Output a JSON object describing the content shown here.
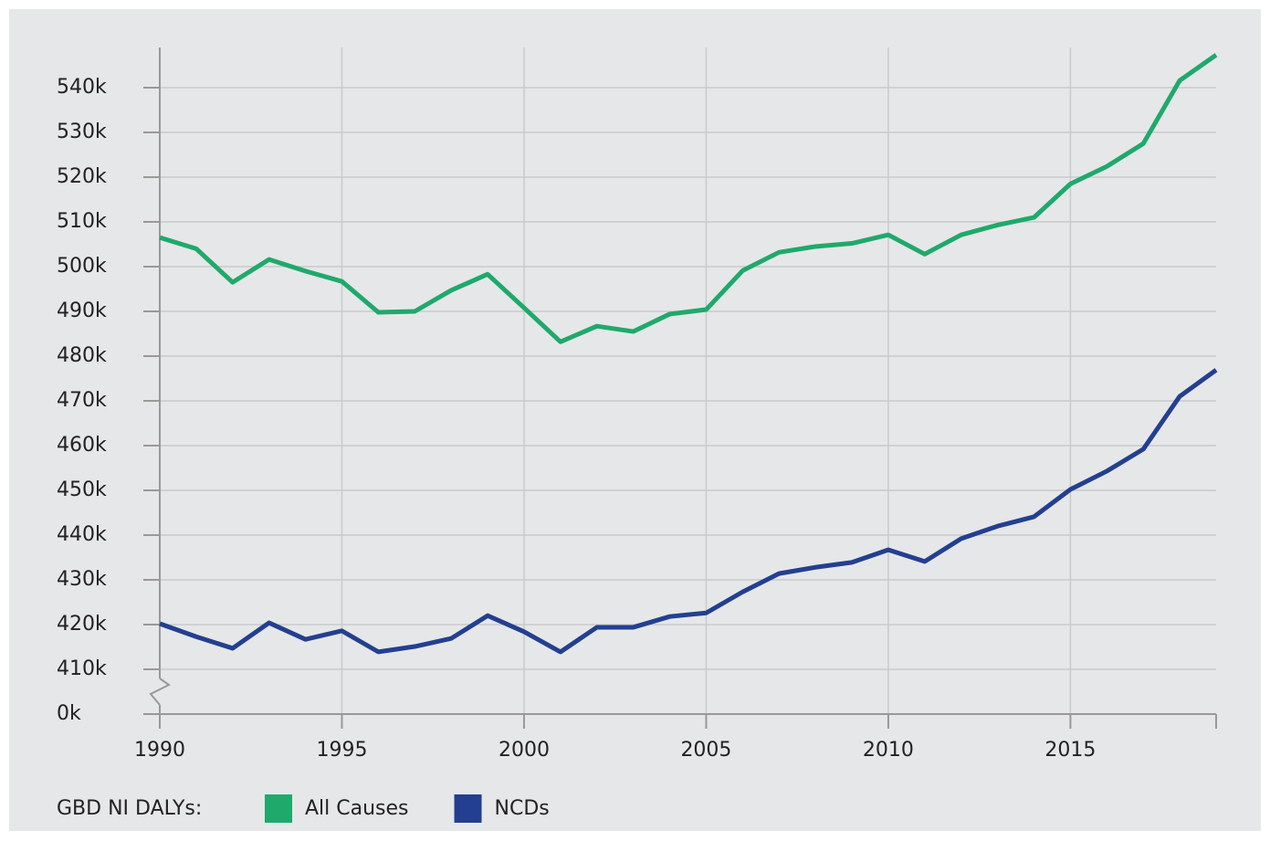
{
  "chart_data": {
    "type": "line",
    "x": [
      1990,
      1991,
      1992,
      1993,
      1994,
      1995,
      1996,
      1997,
      1998,
      1999,
      2000,
      2001,
      2002,
      2003,
      2004,
      2005,
      2006,
      2007,
      2008,
      2009,
      2010,
      2011,
      2012,
      2013,
      2014,
      2015,
      2016,
      2017,
      2018,
      2019
    ],
    "series": [
      {
        "name": "All Causes",
        "color": "#1fa96b",
        "values": [
          506500,
          504000,
          496500,
          501600,
          499000,
          496700,
          489800,
          490000,
          494700,
          498300,
          490800,
          483200,
          486700,
          485500,
          489400,
          490400,
          499100,
          503200,
          504500,
          505200,
          507100,
          502800,
          507100,
          509300,
          511000,
          518500,
          522400,
          527500,
          541600,
          547300
        ]
      },
      {
        "name": "NCDs",
        "color": "#233f8f",
        "values": [
          420200,
          417300,
          414700,
          420400,
          416700,
          418600,
          413900,
          415100,
          416900,
          422000,
          418400,
          413900,
          419400,
          419400,
          421800,
          422600,
          427300,
          431400,
          432800,
          433900,
          436700,
          434100,
          439200,
          442000,
          444100,
          450200,
          454300,
          459200,
          471000,
          476900
        ]
      }
    ],
    "xlim": [
      1990,
      2019
    ],
    "xticks": [
      1990,
      1995,
      2000,
      2005,
      2010,
      2015
    ],
    "ylim": [
      0,
      550000
    ],
    "y_break": [
      0,
      400000
    ],
    "yticks": [
      {
        "value": 0,
        "label": "0k"
      },
      {
        "value": 410000,
        "label": "410k"
      },
      {
        "value": 420000,
        "label": "420k"
      },
      {
        "value": 430000,
        "label": "430k"
      },
      {
        "value": 440000,
        "label": "440k"
      },
      {
        "value": 450000,
        "label": "450k"
      },
      {
        "value": 460000,
        "label": "460k"
      },
      {
        "value": 470000,
        "label": "470k"
      },
      {
        "value": 480000,
        "label": "480k"
      },
      {
        "value": 490000,
        "label": "490k"
      },
      {
        "value": 500000,
        "label": "500k"
      },
      {
        "value": 510000,
        "label": "510k"
      },
      {
        "value": 520000,
        "label": "520k"
      },
      {
        "value": 530000,
        "label": "530k"
      },
      {
        "value": 540000,
        "label": "540k"
      }
    ],
    "grid": true,
    "legend_title": "GBD NI DALYs:",
    "legend": "bottom-left"
  }
}
